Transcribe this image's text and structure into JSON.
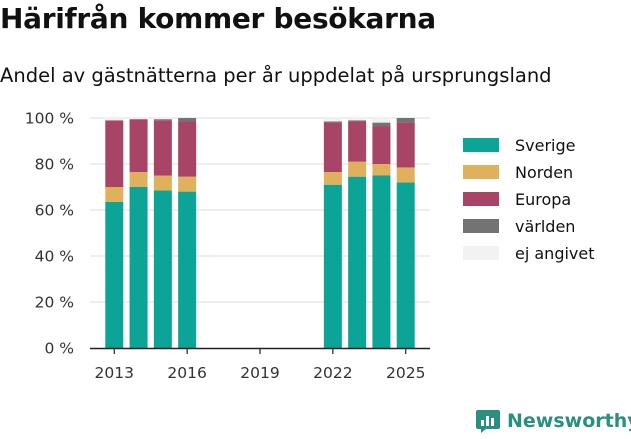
{
  "title": "Härifrån kommer besökarna",
  "subtitle": "Andel av gästnätterna per år uppdelat på ursprungsland",
  "brand": {
    "name": "Newsworthy",
    "icon": "newsworthy-logo-icon"
  },
  "colors": {
    "Sverige": "#0ca497",
    "Norden": "#e0b15d",
    "Europa": "#a84466",
    "världen": "#737373",
    "ej angivet": "#f2f2f2"
  },
  "chart_data": {
    "type": "bar",
    "stacked": true,
    "x": [
      2013,
      2014,
      2015,
      2016,
      2022,
      2023,
      2024,
      2025
    ],
    "x_ticks": [
      2013,
      2016,
      2019,
      2022,
      2025
    ],
    "xlim": [
      2012,
      2026
    ],
    "ylim": [
      0,
      100
    ],
    "y_ticks": [
      0,
      20,
      40,
      60,
      80,
      100
    ],
    "y_tick_labels": [
      "0 %",
      "20 %",
      "40 %",
      "60 %",
      "80 %",
      "100 %"
    ],
    "grid": true,
    "legend": "right",
    "series": [
      {
        "name": "Sverige",
        "values": [
          63.5,
          70,
          68.5,
          68,
          71,
          74.5,
          75,
          72
        ]
      },
      {
        "name": "Norden",
        "values": [
          6.5,
          6.5,
          6.5,
          6.5,
          5.5,
          6.5,
          5,
          6.5
        ]
      },
      {
        "name": "Europa",
        "values": [
          29,
          23,
          24,
          24,
          21.5,
          17.5,
          16.5,
          19.5
        ]
      },
      {
        "name": "världen",
        "values": [
          0,
          0,
          0.5,
          1.5,
          0.5,
          0.5,
          1.5,
          2
        ]
      },
      {
        "name": "ej angivet",
        "values": [
          1,
          0.5,
          0.5,
          0,
          1.5,
          1,
          2,
          0
        ]
      }
    ]
  }
}
